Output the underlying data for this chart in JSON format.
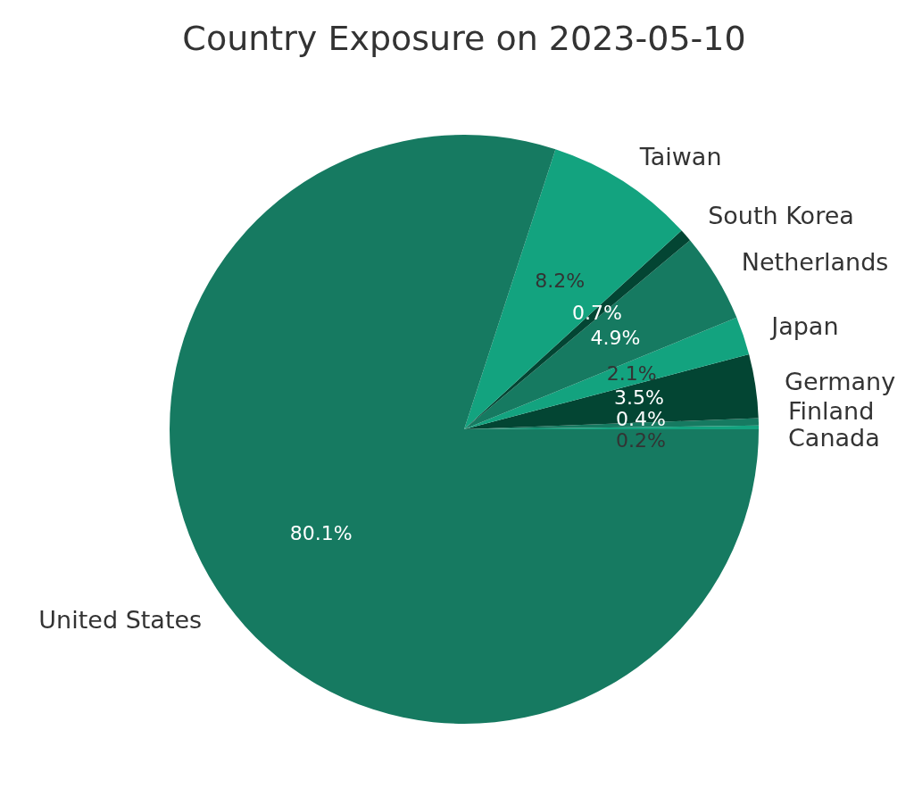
{
  "chart_data": {
    "type": "pie",
    "title": "Country Exposure on 2023-05-10",
    "categories": [
      "Canada",
      "Finland",
      "Germany",
      "Japan",
      "Netherlands",
      "South Korea",
      "Taiwan",
      "United States"
    ],
    "values": [
      0.2,
      0.4,
      3.5,
      2.1,
      4.9,
      0.7,
      8.2,
      80.1
    ],
    "colors": [
      "#13a37f",
      "#167a61",
      "#034533",
      "#13a37f",
      "#167a61",
      "#034533",
      "#13a37f",
      "#167a61"
    ],
    "value_labels": [
      "0.2%",
      "0.4%",
      "3.5%",
      "2.1%",
      "4.9%",
      "0.7%",
      "8.2%",
      "80.1%"
    ]
  }
}
